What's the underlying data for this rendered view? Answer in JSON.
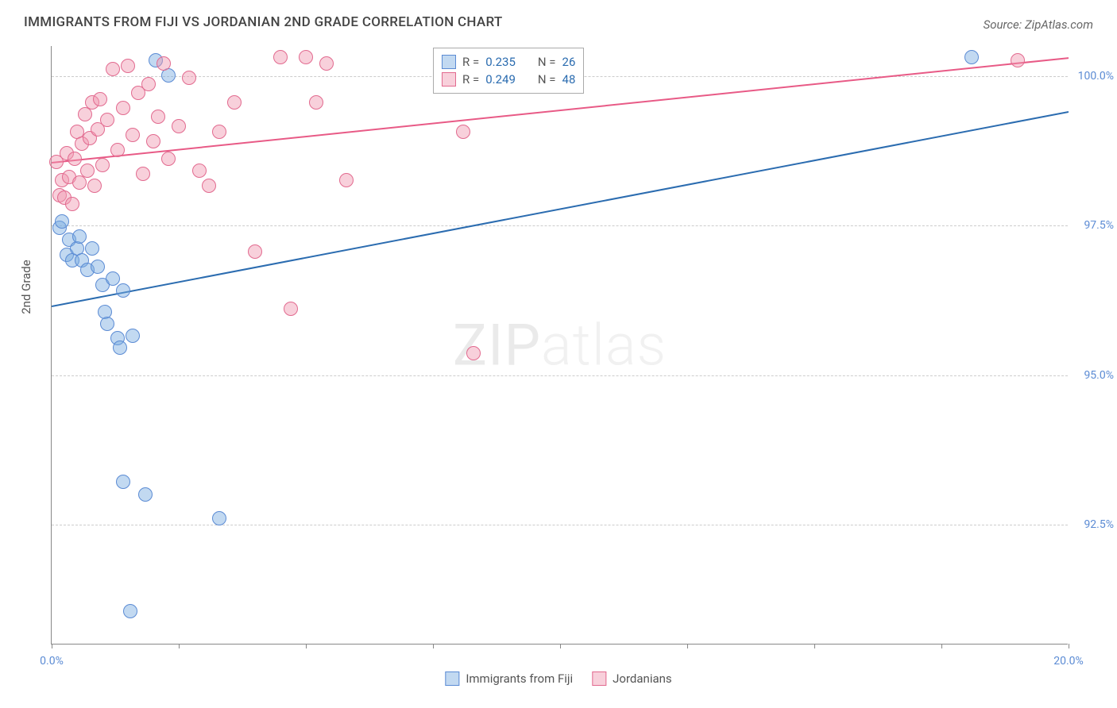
{
  "title": "IMMIGRANTS FROM FIJI VS JORDANIAN 2ND GRADE CORRELATION CHART",
  "source": "Source: ZipAtlas.com",
  "y_axis_title": "2nd Grade",
  "watermark": {
    "bold": "ZIP",
    "light": "atlas"
  },
  "chart": {
    "type": "scatter",
    "xlim": [
      0,
      20
    ],
    "ylim": [
      90.5,
      100.5
    ],
    "x_ticks": [
      0,
      2.5,
      5,
      7.5,
      10,
      12.5,
      15,
      17.5,
      20
    ],
    "x_tick_labels": {
      "0": "0.0%",
      "20": "20.0%"
    },
    "y_gridlines": [
      92.5,
      95.0,
      97.5,
      100.0
    ],
    "y_tick_labels": {
      "92.5": "92.5%",
      "95.0": "95.0%",
      "97.5": "97.5%",
      "100.0": "100.0%"
    },
    "background_color": "#ffffff",
    "grid_color": "#cccccc",
    "axis_color": "#888888",
    "tick_label_color": "#5b8bd4",
    "series": [
      {
        "name": "Immigrants from Fiji",
        "color_fill": "rgba(120,170,225,0.45)",
        "color_stroke": "#5b8bd4",
        "marker_radius": 9,
        "r": "0.235",
        "n": "26",
        "trend": {
          "x1": 0,
          "y1": 96.15,
          "x2": 20,
          "y2": 99.4,
          "color": "#2b6cb0",
          "width": 2
        },
        "points": [
          [
            0.15,
            97.45
          ],
          [
            0.2,
            97.55
          ],
          [
            0.3,
            97.0
          ],
          [
            0.35,
            97.25
          ],
          [
            0.4,
            96.9
          ],
          [
            0.5,
            97.1
          ],
          [
            0.55,
            97.3
          ],
          [
            0.6,
            96.9
          ],
          [
            0.7,
            96.75
          ],
          [
            0.8,
            97.1
          ],
          [
            0.9,
            96.8
          ],
          [
            1.0,
            96.5
          ],
          [
            1.05,
            96.05
          ],
          [
            1.1,
            95.85
          ],
          [
            1.2,
            96.6
          ],
          [
            1.3,
            95.6
          ],
          [
            1.35,
            95.45
          ],
          [
            1.4,
            96.4
          ],
          [
            1.6,
            95.65
          ],
          [
            1.4,
            93.2
          ],
          [
            1.85,
            93.0
          ],
          [
            2.05,
            100.25
          ],
          [
            2.3,
            100.0
          ],
          [
            3.3,
            92.6
          ],
          [
            1.55,
            91.05
          ],
          [
            18.1,
            100.3
          ]
        ]
      },
      {
        "name": "Jordanians",
        "color_fill": "rgba(240,150,175,0.45)",
        "color_stroke": "#e26a8f",
        "marker_radius": 9,
        "r": "0.249",
        "n": "48",
        "trend": {
          "x1": 0,
          "y1": 98.55,
          "x2": 20,
          "y2": 100.3,
          "color": "#e85a86",
          "width": 2
        },
        "points": [
          [
            0.1,
            98.55
          ],
          [
            0.15,
            98.0
          ],
          [
            0.2,
            98.25
          ],
          [
            0.25,
            97.95
          ],
          [
            0.3,
            98.7
          ],
          [
            0.35,
            98.3
          ],
          [
            0.4,
            97.85
          ],
          [
            0.45,
            98.6
          ],
          [
            0.5,
            99.05
          ],
          [
            0.55,
            98.2
          ],
          [
            0.6,
            98.85
          ],
          [
            0.65,
            99.35
          ],
          [
            0.7,
            98.4
          ],
          [
            0.75,
            98.95
          ],
          [
            0.8,
            99.55
          ],
          [
            0.85,
            98.15
          ],
          [
            0.9,
            99.1
          ],
          [
            0.95,
            99.6
          ],
          [
            1.0,
            98.5
          ],
          [
            1.1,
            99.25
          ],
          [
            1.2,
            100.1
          ],
          [
            1.3,
            98.75
          ],
          [
            1.4,
            99.45
          ],
          [
            1.5,
            100.15
          ],
          [
            1.6,
            99.0
          ],
          [
            1.7,
            99.7
          ],
          [
            1.8,
            98.35
          ],
          [
            1.9,
            99.85
          ],
          [
            2.0,
            98.9
          ],
          [
            2.1,
            99.3
          ],
          [
            2.2,
            100.2
          ],
          [
            2.3,
            98.6
          ],
          [
            2.5,
            99.15
          ],
          [
            2.7,
            99.95
          ],
          [
            2.9,
            98.4
          ],
          [
            3.1,
            98.15
          ],
          [
            3.3,
            99.05
          ],
          [
            3.6,
            99.55
          ],
          [
            4.0,
            97.05
          ],
          [
            4.5,
            100.3
          ],
          [
            5.0,
            100.3
          ],
          [
            5.2,
            99.55
          ],
          [
            5.4,
            100.2
          ],
          [
            5.8,
            98.25
          ],
          [
            8.1,
            99.05
          ],
          [
            8.3,
            95.35
          ],
          [
            4.7,
            96.1
          ],
          [
            19.0,
            100.25
          ]
        ]
      }
    ]
  },
  "legend_top": {
    "rows": [
      {
        "swatch_fill": "rgba(120,170,225,0.45)",
        "swatch_stroke": "#5b8bd4",
        "r_label": "R =",
        "r_val": "0.235",
        "n_label": "N =",
        "n_val": "26"
      },
      {
        "swatch_fill": "rgba(240,150,175,0.45)",
        "swatch_stroke": "#e26a8f",
        "r_label": "R =",
        "r_val": "0.249",
        "n_label": "N =",
        "n_val": "48"
      }
    ]
  },
  "legend_bottom": [
    {
      "swatch_fill": "rgba(120,170,225,0.45)",
      "swatch_stroke": "#5b8bd4",
      "label": "Immigrants from Fiji"
    },
    {
      "swatch_fill": "rgba(240,150,175,0.45)",
      "swatch_stroke": "#e26a8f",
      "label": "Jordanians"
    }
  ]
}
